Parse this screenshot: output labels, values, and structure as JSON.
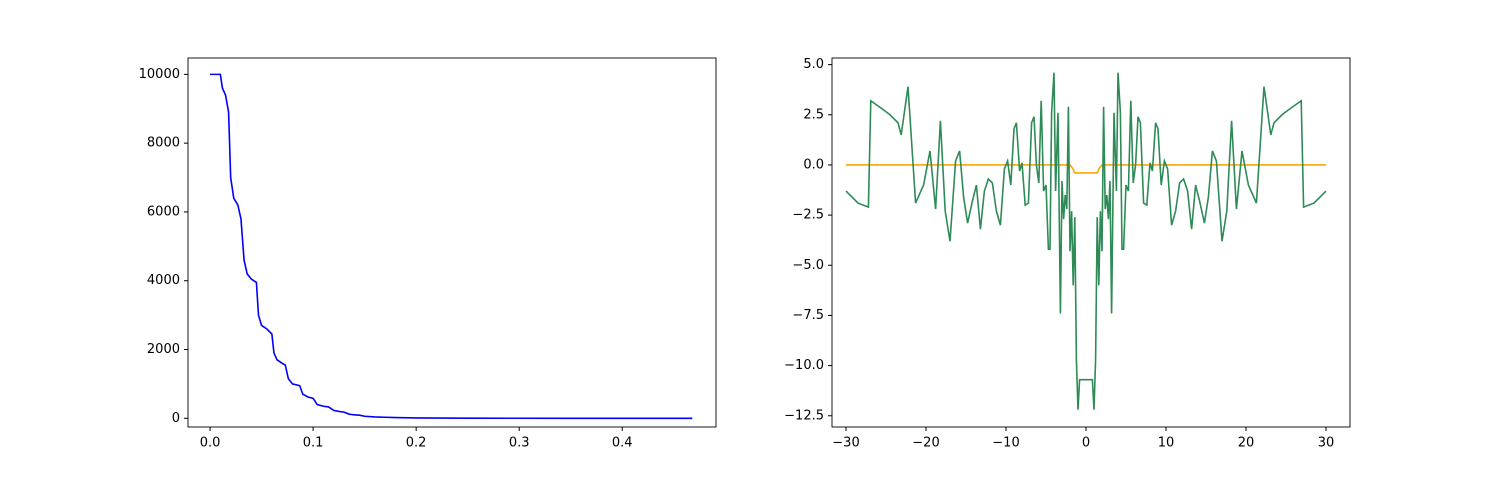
{
  "chart_data": [
    {
      "type": "line",
      "x": [
        0,
        0.007,
        0.01,
        0.012,
        0.015,
        0.018,
        0.02,
        0.023,
        0.027,
        0.03,
        0.033,
        0.036,
        0.04,
        0.045,
        0.047,
        0.05,
        0.055,
        0.06,
        0.062,
        0.065,
        0.07,
        0.073,
        0.076,
        0.08,
        0.087,
        0.09,
        0.095,
        0.1,
        0.104,
        0.11,
        0.115,
        0.12,
        0.125,
        0.13,
        0.135,
        0.14,
        0.145,
        0.15,
        0.16,
        0.18,
        0.2,
        0.25,
        0.3,
        0.35,
        0.4,
        0.468
      ],
      "series": [
        {
          "color": "#0000ff",
          "values": [
            10000,
            10000,
            10000,
            9600,
            9400,
            8900,
            7000,
            6400,
            6200,
            5800,
            4600,
            4200,
            4050,
            3950,
            3000,
            2700,
            2600,
            2450,
            1900,
            1700,
            1600,
            1550,
            1150,
            1000,
            950,
            700,
            620,
            580,
            400,
            350,
            330,
            230,
            200,
            180,
            120,
            100,
            90,
            60,
            40,
            20,
            10,
            3,
            1,
            0,
            0,
            0
          ]
        }
      ],
      "xlim": [
        -0.0214,
        0.491
      ],
      "xticks": [
        {
          "value": 0,
          "label": "0.0"
        },
        {
          "value": 0.1,
          "label": "0.1"
        },
        {
          "value": 0.2,
          "label": "0.2"
        },
        {
          "value": 0.3,
          "label": "0.3"
        },
        {
          "value": 0.4,
          "label": "0.4"
        }
      ],
      "ylim": [
        -253,
        10476
      ],
      "yticks": [
        0,
        2000,
        4000,
        6000,
        8000,
        10000
      ]
    },
    {
      "type": "line",
      "series": [
        {
          "color": "#ffa500",
          "x": [
            -30,
            -2,
            -1.7,
            -1.4,
            1.4,
            1.7,
            2,
            30
          ],
          "values": [
            0,
            0,
            -0.15,
            -0.4,
            -0.4,
            -0.15,
            0,
            0
          ]
        },
        {
          "color": "#2e8b57",
          "x": [
            -30,
            -28.5,
            -27.2,
            -26.9,
            -25.5,
            -24.5,
            -23.5,
            -23.1,
            -22.25,
            -21.3,
            -20.3,
            -19.5,
            -18.8,
            -18.2,
            -17.6,
            -17,
            -16.3,
            -15.8,
            -15.3,
            -14.8,
            -14.2,
            -13.7,
            -13.2,
            -12.7,
            -12.2,
            -11.7,
            -11.2,
            -10.7,
            -10.2,
            -9.8,
            -9.4,
            -9.0,
            -8.7,
            -8.3,
            -8.0,
            -7.6,
            -7.2,
            -6.8,
            -6.5,
            -6.2,
            -5.9,
            -5.6,
            -5.3,
            -5.0,
            -4.7,
            -4.5,
            -4.3,
            -4.0,
            -3.8,
            -3.5,
            -3.2,
            -3.0,
            -2.8,
            -2.6,
            -2.4,
            -2.2,
            -2.0,
            -1.8,
            -1.6,
            -1.4,
            -1.2,
            -1.0,
            -0.8,
            0.8,
            1.0,
            1.2,
            1.4,
            1.6,
            1.8,
            2.0,
            2.2,
            2.4,
            2.6,
            2.8,
            3.0,
            3.2,
            3.5,
            3.8,
            4.0,
            4.3,
            4.5,
            4.7,
            5.0,
            5.3,
            5.6,
            5.9,
            6.2,
            6.5,
            6.8,
            7.2,
            7.6,
            8.0,
            8.3,
            8.7,
            9.0,
            9.4,
            9.8,
            10.2,
            10.7,
            11.2,
            11.7,
            12.2,
            12.7,
            13.2,
            13.7,
            14.2,
            14.8,
            15.3,
            15.8,
            16.3,
            17,
            17.6,
            18.2,
            18.8,
            19.5,
            20.3,
            21.3,
            22.25,
            23.1,
            23.5,
            24.5,
            25.5,
            26.9,
            27.2,
            28.5,
            30
          ],
          "values": [
            -1.3,
            -1.9,
            -2.1,
            3.2,
            2.8,
            2.5,
            2.1,
            1.5,
            3.9,
            -1.9,
            -1.0,
            0.7,
            -2.2,
            2.2,
            -2.3,
            -3.8,
            0.2,
            0.7,
            -1.6,
            -2.9,
            -1.8,
            -1.0,
            -3.2,
            -1.3,
            -0.7,
            -0.9,
            -2.3,
            -3.0,
            -0.2,
            0.2,
            -1.0,
            1.8,
            2.1,
            -0.3,
            0.1,
            -2.0,
            -1.9,
            2.1,
            2.4,
            0.0,
            -0.9,
            3.2,
            -1.3,
            -1.0,
            -4.2,
            -4.2,
            2.6,
            4.6,
            -1.3,
            2.6,
            -7.4,
            -0.8,
            -2.7,
            -1.5,
            -2.2,
            2.9,
            -4.3,
            -2.3,
            -6.0,
            -2.6,
            -9.7,
            -12.2,
            -10.7,
            -10.7,
            -12.2,
            -9.7,
            -2.6,
            -6.0,
            -2.3,
            -4.3,
            2.9,
            -2.2,
            -1.5,
            -2.7,
            -0.8,
            -7.4,
            2.6,
            -1.3,
            4.6,
            2.6,
            -4.2,
            -4.2,
            -1.0,
            -1.3,
            3.2,
            -0.9,
            0.0,
            2.4,
            2.1,
            -1.9,
            -2.0,
            0.1,
            -0.3,
            2.1,
            1.8,
            -1.0,
            0.2,
            -0.2,
            -3.0,
            -2.3,
            -0.9,
            -0.7,
            -1.3,
            -3.2,
            -1.0,
            -1.8,
            -2.9,
            -1.6,
            0.7,
            0.2,
            -3.8,
            -2.3,
            2.2,
            -2.2,
            0.7,
            -1.0,
            -1.9,
            3.9,
            1.5,
            2.1,
            2.5,
            2.8,
            3.2,
            -2.1,
            -1.9,
            -1.3
          ]
        }
      ],
      "xlim": [
        -31.75,
        33
      ],
      "xticks": [
        {
          "value": -30,
          "label": "−30"
        },
        {
          "value": -20,
          "label": "−20"
        },
        {
          "value": -10,
          "label": "−10"
        },
        0,
        10,
        20,
        30
      ],
      "ylim": [
        -13.06,
        5.33
      ],
      "yticks": [
        {
          "value": -12.5,
          "label": "−12.5"
        },
        {
          "value": -10,
          "label": "−10.0"
        },
        {
          "value": -7.5,
          "label": "−7.5"
        },
        {
          "value": -5,
          "label": "−5.0"
        },
        {
          "value": -2.5,
          "label": "−2.5"
        },
        {
          "value": 0,
          "label": "0.0"
        },
        {
          "value": 2.5,
          "label": "2.5"
        },
        {
          "value": 5,
          "label": "5.0"
        }
      ]
    }
  ]
}
